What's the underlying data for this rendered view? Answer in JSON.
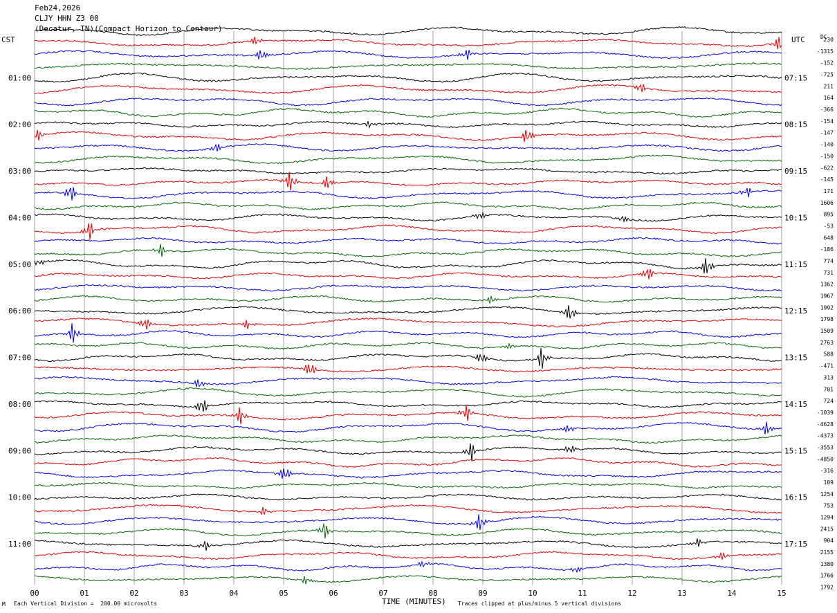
{
  "header": {
    "date": "Feb24,2026",
    "station": "CLJY HHN Z3 00",
    "location": "(Decatur, TN)(Compact Horizon to Centaur)"
  },
  "left_axis_label": "CST",
  "right_axis_label": "UTC",
  "dc_label": "DC",
  "footer": {
    "scale_note": "Each Vertical Division =  200.00 microvolts",
    "clip_note": "Traces clipped at plus/minus 5 vertical divisions",
    "corner_mark": "M"
  },
  "colors": {
    "trace_cycle": [
      "#000000",
      "#dd0000",
      "#0000dd",
      "#006600"
    ],
    "grid": "#888888"
  },
  "chart_data": {
    "type": "line",
    "xlabel": "TIME (MINUTES)",
    "x_ticks": [
      "00",
      "01",
      "02",
      "03",
      "04",
      "05",
      "06",
      "07",
      "08",
      "09",
      "10",
      "11",
      "12",
      "13",
      "14",
      "15"
    ],
    "xlim": [
      0,
      15
    ],
    "left_time_labels": [
      "01:00",
      "02:00",
      "03:00",
      "04:00",
      "05:00",
      "06:00",
      "07:00",
      "08:00",
      "09:00",
      "10:00",
      "11:00"
    ],
    "right_time_labels": [
      "07:15",
      "08:15",
      "09:15",
      "10:15",
      "11:15",
      "12:15",
      "13:15",
      "14:15",
      "15:15",
      "16:15",
      "17:15"
    ],
    "trace_count": 48,
    "dc_offsets": [
      "230",
      "-1315",
      "-152",
      "-725",
      "211",
      "164",
      "-366",
      "-154",
      "-147",
      "-140",
      "-150",
      "-622",
      "-145",
      "171",
      "1606",
      "895",
      "-53",
      "648",
      "-186",
      "774",
      "731",
      "1362",
      "1967",
      "1992",
      "1798",
      "1509",
      "2763",
      "588",
      "-471",
      "313",
      "701",
      "724",
      "-1039",
      "-4628",
      "-4373",
      "-3553",
      "-4850",
      "-316",
      "109",
      "1254",
      "753",
      "1294",
      "2415",
      "904",
      "2155",
      "1380",
      "1766",
      "1792"
    ]
  }
}
